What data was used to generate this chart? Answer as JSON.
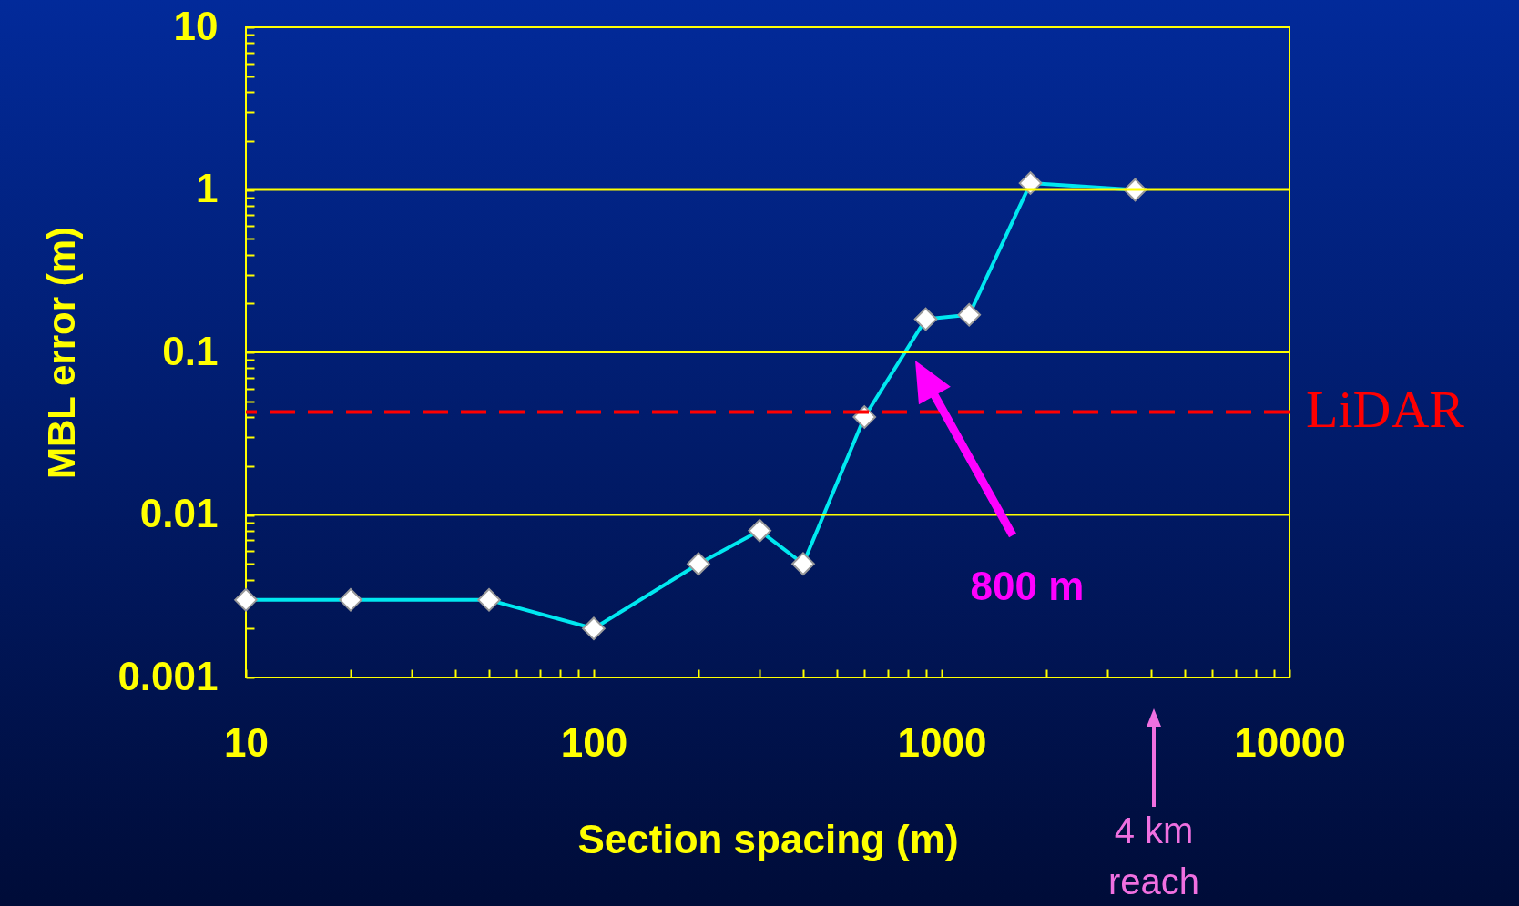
{
  "chart_data": {
    "type": "line",
    "xlabel": "Section spacing (m)",
    "ylabel": "MBL error (m)",
    "log": "xy",
    "x": [
      10,
      20,
      50,
      100,
      200,
      300,
      400,
      600,
      900,
      1200,
      1800,
      3600
    ],
    "series": [
      {
        "color": "#00e8f0",
        "values": [
          0.003,
          0.003,
          0.003,
          0.002,
          0.005,
          0.008,
          0.005,
          0.04,
          0.16,
          0.17,
          1.1,
          1.0
        ]
      }
    ],
    "marker": "diamond",
    "line_style": "solid",
    "grid": "y",
    "xlim": [
      10,
      10000
    ],
    "ylim": [
      0.001,
      10
    ],
    "xticks": [
      10,
      {
        "value": 20,
        "label": null
      },
      {
        "value": 30,
        "label": null
      },
      {
        "value": 40,
        "label": null
      },
      {
        "value": 50,
        "label": null
      },
      {
        "value": 60,
        "label": null
      },
      {
        "value": 70,
        "label": null
      },
      {
        "value": 80,
        "label": null
      },
      {
        "value": 90,
        "label": null
      },
      100,
      {
        "value": 200,
        "label": null
      },
      {
        "value": 300,
        "label": null
      },
      {
        "value": 400,
        "label": null
      },
      {
        "value": 500,
        "label": null
      },
      {
        "value": 600,
        "label": null
      },
      {
        "value": 700,
        "label": null
      },
      {
        "value": 800,
        "label": null
      },
      {
        "value": 900,
        "label": null
      },
      1000,
      {
        "value": 2000,
        "label": null
      },
      {
        "value": 3000,
        "label": null
      },
      {
        "value": 4000,
        "label": null
      },
      {
        "value": 5000,
        "label": null
      },
      {
        "value": 6000,
        "label": null
      },
      {
        "value": 7000,
        "label": null
      },
      {
        "value": 8000,
        "label": null
      },
      {
        "value": 9000,
        "label": null
      },
      10000
    ],
    "yticks": [
      0.001,
      {
        "value": 0.002,
        "label": null
      },
      {
        "value": 0.003,
        "label": null
      },
      {
        "value": 0.004,
        "label": null
      },
      {
        "value": 0.005,
        "label": null
      },
      {
        "value": 0.006,
        "label": null
      },
      {
        "value": 0.007,
        "label": null
      },
      {
        "value": 0.008,
        "label": null
      },
      {
        "value": 0.009,
        "label": null
      },
      0.01,
      {
        "value": 0.02,
        "label": null
      },
      {
        "value": 0.03,
        "label": null
      },
      {
        "value": 0.04,
        "label": null
      },
      {
        "value": 0.05,
        "label": null
      },
      {
        "value": 0.06,
        "label": null
      },
      {
        "value": 0.07,
        "label": null
      },
      {
        "value": 0.08,
        "label": null
      },
      {
        "value": 0.09,
        "label": null
      },
      0.1,
      {
        "value": 0.2,
        "label": null
      },
      {
        "value": 0.3,
        "label": null
      },
      {
        "value": 0.4,
        "label": null
      },
      {
        "value": 0.5,
        "label": null
      },
      {
        "value": 0.6,
        "label": null
      },
      {
        "value": 0.7,
        "label": null
      },
      {
        "value": 0.8,
        "label": null
      },
      {
        "value": 0.9,
        "label": null
      },
      1,
      {
        "value": 2,
        "label": null
      },
      {
        "value": 3,
        "label": null
      },
      {
        "value": 4,
        "label": null
      },
      {
        "value": 5,
        "label": null
      },
      {
        "value": 6,
        "label": null
      },
      {
        "value": 7,
        "label": null
      },
      {
        "value": 8,
        "label": null
      },
      {
        "value": 9,
        "label": null
      },
      10
    ],
    "ref_lines": [
      {
        "axis": "y",
        "value": 0.043,
        "label": "LiDAR",
        "color": "#ff0000",
        "line_style": "dashed"
      }
    ],
    "annotations": [
      "800 m",
      "4 km reach"
    ]
  }
}
